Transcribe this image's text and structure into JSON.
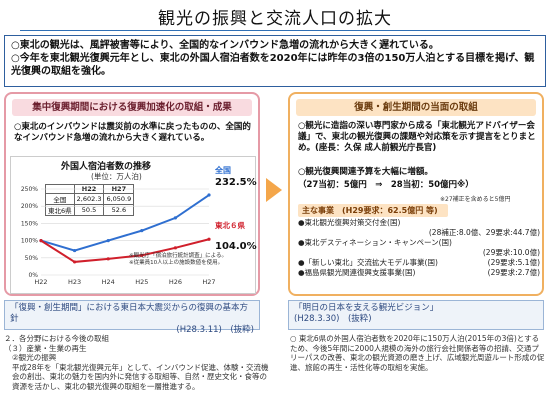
{
  "title": "観光の振興と交流人口の拡大",
  "summary": [
    "○東北の観光は、風評被害等により、全国的なインバウンド急増の流れから大きく遅れている。",
    "○今年を東北観光復興元年とし、東北の外国人宿泊者数を2020年には昨年の3倍の150万人泊とする目標を掲げ、観光復興の取組を強化。"
  ],
  "left_panel": {
    "header": "集中復興期間における復興加速化の取組・成果",
    "bullet": "○東北のインバウンドは震災前の水準に戻ったものの、全国的なインバウンド急増の流れから大きく遅れている。",
    "chart_title": "外国人宿泊者数の推移",
    "unit": "(単位：万人泊)",
    "table": {
      "headers": [
        "",
        "H22",
        "H27"
      ],
      "rows": [
        [
          "全国",
          "2,602.3",
          "6,050.9"
        ],
        [
          "東北6県",
          "50.5",
          "52.6"
        ]
      ]
    },
    "label_national": "全国",
    "label_tohoku": "東北６県",
    "pct_national": "232.5%",
    "pct_tohoku": "104.0%",
    "notes": [
      "※観光庁「宿泊旅行統計調査」による。",
      "※従業員10人以上の施設数値を使用。"
    ]
  },
  "left_footer": {
    "text": "「復興・創生期間」における東日本大震災からの復興の基本方針",
    "date": "(H28.3.11)　(抜粋)"
  },
  "left_bottom": [
    "２．各分野における今後の取組",
    "（３）産業・生業の再生",
    "②観光の振興",
    "平成28年を「東北観光復興元年」として、インバウンド促進、体験・交流機会の創出、東北の魅力を国内外に発信する取組等、自然・歴史文化・食等の資源を活かし、東北の観光復興の取組を一層推進する。"
  ],
  "right_panel": {
    "header": "復興・創生期間の当面の取組",
    "bullet1": "○観光に造詣の深い専門家から成る「東北観光アドバイザー会議」で、東北の観光復興の課題や対応策を示す提言をとりまとめ。(座長：久保 成人前観光庁長官)",
    "bullet2": "○観光復興関連予算を大幅に増額。",
    "budget": "（27当初：5億円　⇒　28当初：50億円※）",
    "budget_note": "※27補正を含めると5億円",
    "projects_header": "主な事業　(H29要求：62.5億円 等)",
    "projects": [
      {
        "name": "●東北観光復興対策交付金(国)",
        "amount": "(28補正:8.0億、29要求:44.7億)"
      },
      {
        "name": "●東北デスティネーション・キャンペーン(国)",
        "amount": "(29要求:10.0億)"
      },
      {
        "name": "●「新しい東北」交流拡大モデル事業(国)",
        "amount": "(29要求:5.1億)"
      },
      {
        "name": "●福島県観光関連復興支援事業(国)",
        "amount": "(29要求:2.7億)"
      }
    ]
  },
  "right_footer": {
    "text": "「明日の日本を支える観光ビジョン」",
    "date": "(H28.3.30)　(抜粋)"
  },
  "right_bottom": "○ 東北6県の外国人宿泊者数を2020年に150万人泊(2015年の3倍)とするため、今後5年間に2000人規模の海外の旅行会社関係者等の招請、交通プリーパスの改善、東北の観光資源の磨き上げ、広域観光周遊ルート形成の促進、旅館の再生・活性化等の取組を実施。",
  "chart_data": {
    "type": "line",
    "categories": [
      "H22",
      "H23",
      "H24",
      "H25",
      "H26",
      "H27"
    ],
    "y_ticks": [
      0,
      50,
      100,
      150,
      200,
      250
    ],
    "y_tick_labels": [
      "0%",
      "50%",
      "100%",
      "150%",
      "200%",
      "250%"
    ],
    "ylim": [
      0,
      250
    ],
    "series": [
      {
        "name": "全国",
        "color": "#2f6fd0",
        "values": [
          100,
          71,
          100,
          129,
          166,
          232.5
        ]
      },
      {
        "name": "東北６県",
        "color": "#d01f2b",
        "values": [
          100,
          38,
          47,
          57,
          79,
          104.0
        ]
      }
    ]
  }
}
